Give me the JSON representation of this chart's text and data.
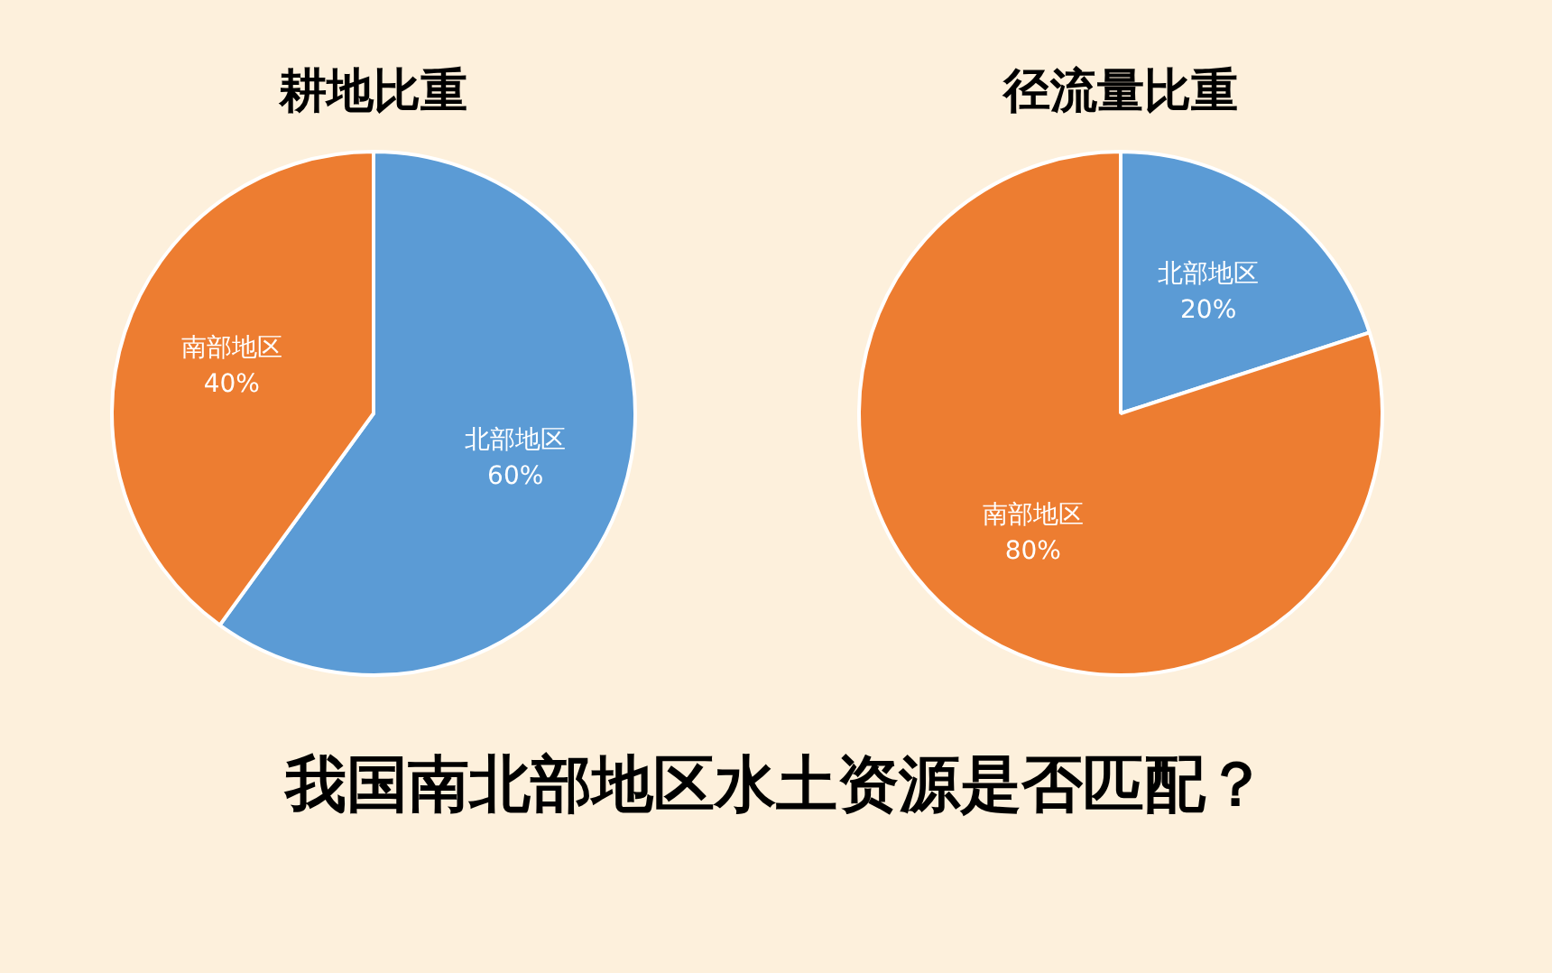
{
  "chart_data": [
    {
      "type": "pie",
      "title": "耕地比重",
      "categories": [
        "北部地区",
        "南部地区"
      ],
      "values": [
        60,
        40
      ],
      "colors": [
        "#5b9bd5",
        "#ed7d31"
      ],
      "value_labels": [
        "60%",
        "40%"
      ]
    },
    {
      "type": "pie",
      "title": "径流量比重",
      "categories": [
        "北部地区",
        "南部地区"
      ],
      "values": [
        20,
        80
      ],
      "colors": [
        "#5b9bd5",
        "#ed7d31"
      ],
      "value_labels": [
        "20%",
        "80%"
      ]
    },
    {
      "type": "other",
      "title": "我国南北部地区水土资源是否匹配？"
    }
  ]
}
